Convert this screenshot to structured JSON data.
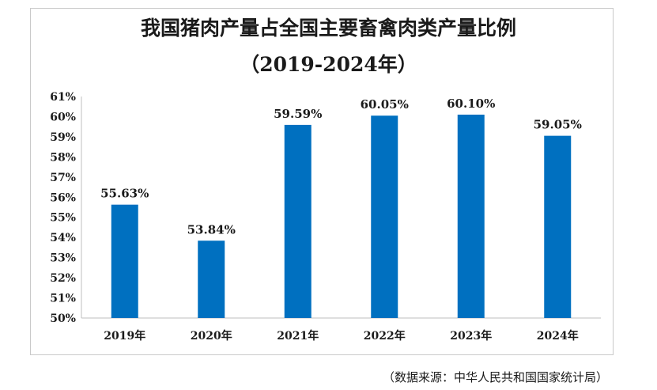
{
  "chart_data": {
    "type": "bar",
    "title": "我国猪肉产量占全国主要畜禽肉类产量比例",
    "subtitle": "（2019-2024年）",
    "categories": [
      "2019年",
      "2020年",
      "2021年",
      "2022年",
      "2023年",
      "2024年"
    ],
    "values": [
      55.63,
      53.84,
      59.59,
      60.05,
      60.1,
      59.05
    ],
    "data_labels": [
      "55.63%",
      "53.84%",
      "59.59%",
      "60.05%",
      "60.10%",
      "59.05%"
    ],
    "yticks": [
      "50%",
      "51%",
      "52%",
      "53%",
      "54%",
      "55%",
      "56%",
      "57%",
      "58%",
      "59%",
      "60%",
      "61%"
    ],
    "ylim": [
      50,
      61
    ],
    "grid": false,
    "legend": "none",
    "bar_color": "#0070c0"
  },
  "source": "（数据来源：中华人民共和国国家统计局）"
}
